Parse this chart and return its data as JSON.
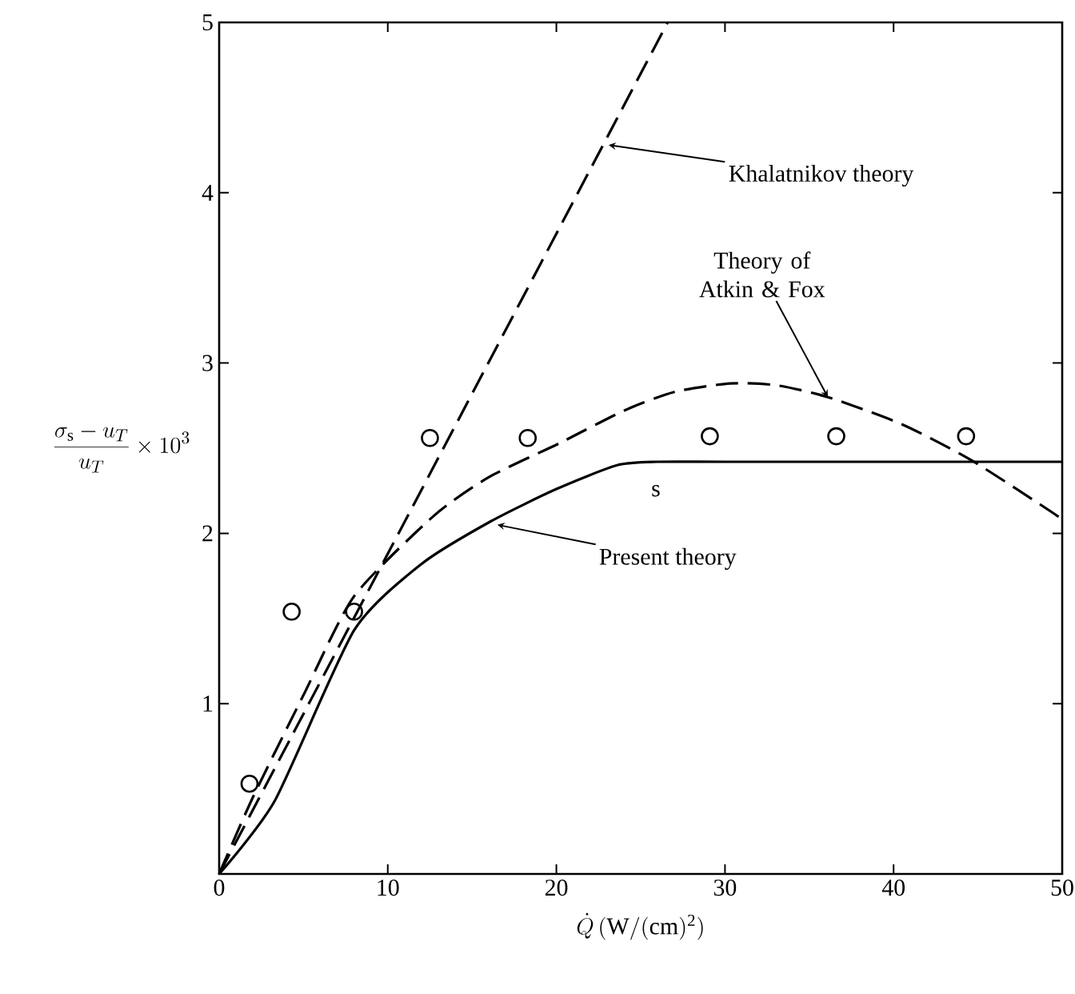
{
  "chart_data": {
    "type": "line",
    "xlabel": "\\dot{Q}\\,(\\mathrm{W/(cm)^{2}})",
    "ylabel": "\\frac{\\sigma_{\\mathrm{s}} - u_T}{u_T} \\times 10^{3}",
    "xlim": [
      0,
      50
    ],
    "ylim": [
      0,
      5
    ],
    "xticks": [
      0,
      10,
      20,
      30,
      40,
      50
    ],
    "yticks": [
      1,
      2,
      3,
      4,
      5
    ],
    "grid": false,
    "series": [
      {
        "type": "scatter",
        "marker": "circle",
        "color": "#000000",
        "x": [
          1.8,
          4.3,
          8.0,
          12.5,
          18.3,
          29.1,
          36.6,
          44.3
        ],
        "values": [
          0.53,
          1.54,
          1.54,
          2.56,
          2.56,
          2.57,
          2.57,
          2.57
        ]
      },
      {
        "line_style": "dashed",
        "color": "#000000",
        "x": [
          0,
          26.6
        ],
        "values": [
          0,
          5
        ]
      },
      {
        "line_style": "dashed",
        "color": "#000000",
        "x": [
          0,
          2,
          5,
          8,
          12.7,
          16,
          20.2,
          24,
          27,
          30.3,
          33,
          36.1,
          40.5,
          44.6,
          49.3,
          50
        ],
        "values": [
          0,
          0.45,
          1.05,
          1.63,
          2.1,
          2.33,
          2.53,
          2.72,
          2.83,
          2.88,
          2.87,
          2.8,
          2.64,
          2.43,
          2.13,
          2.08
        ]
      },
      {
        "line_style": "solid",
        "color": "#000000",
        "x": [
          0,
          3.3,
          8.0,
          12,
          16.1,
          20,
          23.6,
          26,
          30,
          40,
          50
        ],
        "values": [
          0,
          0.43,
          1.43,
          1.82,
          2.07,
          2.26,
          2.4,
          2.42,
          2.42,
          2.42,
          2.42
        ]
      }
    ],
    "annotations": [
      {
        "text": "Khalatnikov theory",
        "x": 23.1,
        "y": 4.28
      },
      {
        "text": "Theory of Atkin & Fox",
        "x": 36.1,
        "y": 2.8
      },
      {
        "text": "Present theory",
        "x": 16.5,
        "y": 2.05
      },
      "s"
    ]
  }
}
